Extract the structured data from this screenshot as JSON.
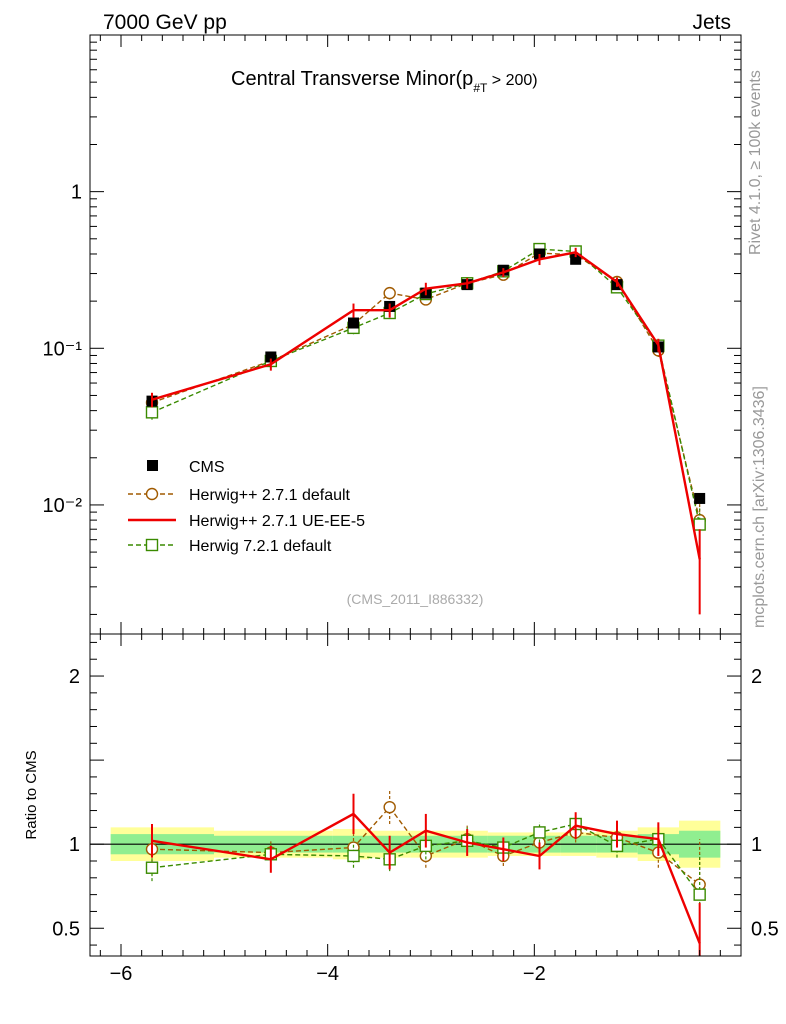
{
  "header": {
    "left": "7000 GeV pp",
    "right": "Jets"
  },
  "side": {
    "rivet": "Rivet 4.1.0, ≥ 100k events",
    "mcplots": "mcplots.cern.ch [arXiv:1306.3436]"
  },
  "plot_title": {
    "main": "Central Transverse Minor(p",
    "sub": "#T",
    "tail": "  > 200)"
  },
  "watermark": "(CMS_2011_I886332)",
  "colors": {
    "cms": "#000000",
    "herwig_default": "#a05a00",
    "herwig_ueee5": "#ee0000",
    "herwig72": "#3a8a00",
    "band_inner": "#90ee90",
    "band_outer": "#ffff99"
  },
  "chart_data": [
    {
      "type": "scatter",
      "panel": "main",
      "title": "Central Transverse Minor(p#T > 200)",
      "xlabel": "",
      "ylabel": "",
      "xlim": [
        -6.3,
        -0.0
      ],
      "ylim": [
        0.0015,
        10
      ],
      "yscale": "log",
      "yticks": [
        {
          "v": 1,
          "label": "1"
        },
        {
          "v": 0.1,
          "label": "10⁻¹"
        },
        {
          "v": 0.01,
          "label": "10⁻²"
        }
      ],
      "legend": [
        "CMS",
        "Herwig++ 2.7.1 default",
        "Herwig++ 2.7.1 UE-EE-5",
        "Herwig 7.2.1 default"
      ],
      "series": [
        {
          "name": "CMS",
          "style": "markers",
          "x": [
            -5.7,
            -4.55,
            -3.75,
            -3.4,
            -3.05,
            -2.65,
            -2.3,
            -1.95,
            -1.6,
            -1.2,
            -0.8,
            -0.4
          ],
          "y": [
            0.046,
            0.088,
            0.145,
            0.185,
            0.225,
            0.255,
            0.315,
            0.4,
            0.37,
            0.255,
            0.102,
            0.011
          ]
        },
        {
          "name": "Herwig++ 2.7.1 default",
          "style": "dashed-circle",
          "x": [
            -5.7,
            -4.55,
            -3.75,
            -3.4,
            -3.05,
            -2.65,
            -2.3,
            -1.95,
            -1.6,
            -1.2,
            -0.8,
            -0.4
          ],
          "y": [
            0.045,
            0.083,
            0.142,
            0.225,
            0.205,
            0.26,
            0.295,
            0.405,
            0.395,
            0.265,
            0.097,
            0.008
          ],
          "err": [
            0.004,
            0.006,
            0.012,
            0.02,
            0.016,
            0.02,
            0.02,
            0.025,
            0.025,
            0.018,
            0.009,
            0.003
          ]
        },
        {
          "name": "Herwig++ 2.7.1 UE-EE-5",
          "style": "solid",
          "x": [
            -5.7,
            -4.55,
            -3.75,
            -3.4,
            -3.05,
            -2.65,
            -2.3,
            -1.95,
            -1.6,
            -1.2,
            -0.8,
            -0.4
          ],
          "y": [
            0.047,
            0.079,
            0.175,
            0.175,
            0.24,
            0.26,
            0.305,
            0.37,
            0.41,
            0.265,
            0.105,
            0.0045
          ],
          "err": [
            0.005,
            0.007,
            0.018,
            0.018,
            0.022,
            0.02,
            0.02,
            0.03,
            0.028,
            0.018,
            0.01,
            0.0025
          ]
        },
        {
          "name": "Herwig 7.2.1 default",
          "style": "dashed-square",
          "x": [
            -5.7,
            -4.55,
            -3.75,
            -3.4,
            -3.05,
            -2.65,
            -2.3,
            -1.95,
            -1.6,
            -1.2,
            -0.8,
            -0.4
          ],
          "y": [
            0.039,
            0.083,
            0.135,
            0.168,
            0.222,
            0.26,
            0.31,
            0.43,
            0.415,
            0.245,
            0.104,
            0.0075
          ],
          "err": [
            0.004,
            0.006,
            0.012,
            0.014,
            0.018,
            0.02,
            0.02,
            0.03,
            0.028,
            0.018,
            0.01,
            0.002
          ]
        }
      ]
    },
    {
      "type": "scatter",
      "panel": "ratio",
      "xlabel": "",
      "ylabel": "Ratio to CMS",
      "xlim": [
        -6.3,
        -0.0
      ],
      "ylim": [
        0.335,
        2.25
      ],
      "xticks": [
        {
          "v": -6,
          "label": "−6"
        },
        {
          "v": -4,
          "label": "−4"
        },
        {
          "v": -2,
          "label": "−2"
        }
      ],
      "yticks": [
        {
          "v": 0.5,
          "label": "0.5"
        },
        {
          "v": 1,
          "label": "1"
        },
        {
          "v": 2,
          "label": "2"
        }
      ],
      "bands": {
        "edges": [
          -6.1,
          -5.1,
          -4.35,
          -3.95,
          -3.6,
          -3.2,
          -2.85,
          -2.45,
          -2.1,
          -1.75,
          -1.4,
          -1.0,
          -0.6,
          -0.2
        ],
        "inner": [
          0.06,
          0.05,
          0.05,
          0.05,
          0.05,
          0.05,
          0.05,
          0.05,
          0.05,
          0.05,
          0.05,
          0.06,
          0.08
        ],
        "outer": [
          0.1,
          0.08,
          0.08,
          0.09,
          0.08,
          0.08,
          0.08,
          0.07,
          0.07,
          0.07,
          0.08,
          0.1,
          0.14
        ]
      },
      "series": [
        {
          "name": "Herwig++ 2.7.1 default",
          "style": "dashed-circle",
          "x": [
            -5.7,
            -4.55,
            -3.75,
            -3.4,
            -3.05,
            -2.65,
            -2.3,
            -1.95,
            -1.6,
            -1.2,
            -0.8,
            -0.4
          ],
          "y": [
            0.97,
            0.95,
            0.98,
            1.22,
            0.93,
            1.03,
            0.93,
            1.01,
            1.07,
            1.04,
            0.95,
            0.76
          ],
          "err": [
            0.08,
            0.07,
            0.08,
            0.1,
            0.07,
            0.08,
            0.06,
            0.06,
            0.06,
            0.07,
            0.09,
            0.27
          ]
        },
        {
          "name": "Herwig++ 2.7.1 UE-EE-5",
          "style": "solid",
          "x": [
            -5.7,
            -4.55,
            -3.75,
            -3.4,
            -3.05,
            -2.65,
            -2.3,
            -1.95,
            -1.6,
            -1.2,
            -0.8,
            -0.4
          ],
          "y": [
            1.02,
            0.91,
            1.18,
            0.95,
            1.08,
            1.01,
            0.97,
            0.93,
            1.11,
            1.06,
            1.03,
            0.41
          ],
          "err": [
            0.1,
            0.08,
            0.12,
            0.1,
            0.1,
            0.08,
            0.07,
            0.08,
            0.08,
            0.08,
            0.1,
            0.24
          ]
        },
        {
          "name": "Herwig 7.2.1 default",
          "style": "dashed-square",
          "x": [
            -5.7,
            -4.55,
            -3.75,
            -3.4,
            -3.05,
            -2.65,
            -2.3,
            -1.95,
            -1.6,
            -1.2,
            -0.8,
            -0.4
          ],
          "y": [
            0.86,
            0.94,
            0.93,
            0.91,
            0.99,
            1.02,
            0.98,
            1.07,
            1.12,
            0.99,
            1.03,
            0.7
          ],
          "err": [
            0.08,
            0.07,
            0.07,
            0.07,
            0.08,
            0.08,
            0.06,
            0.06,
            0.06,
            0.07,
            0.09,
            0.24
          ]
        }
      ]
    }
  ]
}
